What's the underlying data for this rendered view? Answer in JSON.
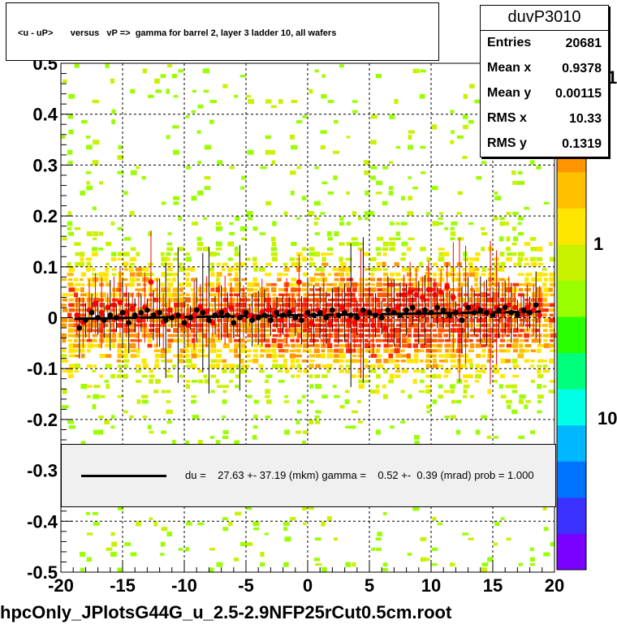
{
  "title": "<u - uP>       versus   vP =>  gamma for barrel 2, layer 3 ladder 10, all wafers",
  "stats": {
    "name": "duvP3010",
    "rows": [
      {
        "key": "Entries",
        "value": "20681"
      },
      {
        "key": "Mean x",
        "value": "0.9378"
      },
      {
        "key": "Mean y",
        "value": "0.00115"
      },
      {
        "key": "RMS x",
        "value": "10.33"
      },
      {
        "key": "RMS y",
        "value": "0.1319"
      }
    ]
  },
  "legend": {
    "text": "du =    27.63 +- 37.19 (mkm) gamma =    0.52 +-  0.39 (mrad) prob = 1.000"
  },
  "footer": "hpcOnly_JPlotsG44G_u_2.5-2.9NFP25rCut0.5cm.root",
  "colors": {
    "palette": [
      "#7a00ff",
      "#3b32ff",
      "#0073ff",
      "#00b8ff",
      "#00ffe6",
      "#00ff7a",
      "#2aff00",
      "#99ff00",
      "#c8f200",
      "#ffe600",
      "#ffc000",
      "#ff9500",
      "#ff5a00",
      "#ff2a00"
    ],
    "red_points": "#ff0000",
    "black_points": "#000000"
  },
  "chart_data": {
    "type": "heatmap",
    "xlim": [
      -20,
      20
    ],
    "ylim": [
      -0.5,
      0.5
    ],
    "x_ticks": [
      "-20",
      "-15",
      "-10",
      "-5",
      "0",
      "5",
      "10",
      "15",
      "20"
    ],
    "y_ticks": [
      "-0.5",
      "-0.4",
      "-0.3",
      "-0.2",
      "-0.1",
      "0",
      "0.1",
      "0.2",
      "0.3",
      "0.4",
      "0.5"
    ],
    "grid": true,
    "z_scale": "log",
    "z_tick_labels": [
      "10",
      "1",
      "10"
    ],
    "fit_line": {
      "x": [
        -18.9,
        18.9
      ],
      "y": [
        -0.002,
        0.012
      ]
    },
    "red_series": {
      "x": [
        -18.7,
        -18.2,
        -17.7,
        -17.2,
        -16.7,
        -16.2,
        -15.7,
        -15.2,
        -14.7,
        -14.2,
        -13.7,
        -13.2,
        -12.7,
        -12.2,
        -11.7,
        -11.2,
        -10.7,
        -10.2,
        -9.7,
        -9.2,
        -8.7,
        -8.2,
        -7.7,
        -7.2,
        -6.7,
        -6.2,
        -5.7,
        -5.2,
        -4.7,
        -4.2,
        -3.7,
        -3.2,
        -2.7,
        -2.2,
        -1.7,
        -1.2,
        -0.7,
        -0.2,
        0.3,
        0.8,
        1.3,
        1.8,
        2.3,
        2.8,
        3.3,
        3.8,
        4.3,
        4.8,
        5.3,
        5.8,
        6.3,
        6.8,
        7.3,
        7.8,
        8.3,
        8.8,
        9.3,
        9.8,
        10.3,
        10.8,
        11.3,
        11.8,
        12.3,
        12.8,
        13.3,
        13.8,
        14.3,
        14.8,
        15.3,
        15.8,
        16.3,
        16.8,
        17.3,
        17.8,
        18.3,
        18.8
      ],
      "y": [
        0.005,
        -0.01,
        0.015,
        0.028,
        0.01,
        0.02,
        0.025,
        0.03,
        0.012,
        0.018,
        -0.005,
        0.02,
        0.07,
        0.01,
        -0.008,
        0.015,
        0.005,
        0.002,
        -0.015,
        0.005,
        0.02,
        0.012,
        -0.01,
        0.01,
        0.015,
        0.02,
        0.005,
        0.012,
        0.005,
        0.0,
        0.01,
        0.015,
        0.008,
        -0.005,
        0.012,
        0.015,
        0.07,
        0.005,
        -0.01,
        0.015,
        0.01,
        -0.012,
        0.005,
        0.02,
        -0.005,
        -0.01,
        0.008,
        0.01,
        -0.015,
        0.012,
        -0.02,
        0.015,
        0.02,
        0.045,
        0.05,
        0.045,
        0.04,
        0.055,
        0.045,
        0.05,
        0.06,
        0.04,
        0.015,
        0.025,
        0.02,
        0.018,
        0.015,
        0.01,
        0.02,
        0.015,
        0.025,
        0.02,
        0.015,
        0.02,
        0.015,
        0.005
      ]
    },
    "black_series": {
      "x": [
        -18.5,
        -18.0,
        -17.5,
        -17.0,
        -16.5,
        -16.0,
        -15.5,
        -15.0,
        -14.5,
        -14.0,
        -13.5,
        -13.0,
        -12.5,
        -12.0,
        -11.5,
        -11.0,
        -10.5,
        -10.0,
        -9.5,
        -9.0,
        -8.5,
        -8.0,
        -7.5,
        -7.0,
        -6.5,
        -6.0,
        -5.5,
        -5.0,
        -4.5,
        -4.0,
        -3.5,
        -3.0,
        -2.5,
        -2.0,
        -1.5,
        -1.0,
        -0.5,
        0.0,
        0.5,
        1.0,
        1.5,
        2.0,
        2.5,
        3.0,
        3.5,
        4.0,
        4.5,
        5.0,
        5.5,
        6.0,
        6.5,
        7.0,
        7.5,
        8.0,
        8.5,
        9.0,
        9.5,
        10.0,
        10.5,
        11.0,
        11.5,
        12.0,
        12.5,
        13.0,
        13.5,
        14.0,
        14.5,
        15.0,
        15.5,
        16.0,
        16.5,
        17.0,
        17.5,
        18.0,
        18.5
      ],
      "y": [
        -0.02,
        -0.005,
        0.01,
        0.0,
        -0.005,
        0.005,
        0.0,
        0.01,
        -0.01,
        0.005,
        0.01,
        0.015,
        0.005,
        0.01,
        -0.005,
        0.0,
        0.005,
        -0.01,
        0.0,
        0.015,
        0.01,
        -0.005,
        0.005,
        0.01,
        0.005,
        -0.01,
        0.0,
        0.01,
        -0.005,
        0.0,
        0.005,
        -0.005,
        0.01,
        0.005,
        0.01,
        0.0,
        -0.005,
        0.01,
        0.005,
        0.01,
        0.0,
        0.015,
        0.005,
        0.01,
        0.005,
        0.0,
        0.015,
        0.01,
        0.005,
        0.0,
        0.015,
        0.01,
        0.005,
        0.015,
        0.02,
        0.01,
        0.015,
        0.01,
        0.02,
        0.015,
        0.005,
        0.01,
        -0.005,
        0.02,
        0.01,
        0.015,
        0.01,
        0.005,
        0.015,
        0.02,
        0.01,
        0.005,
        0.015,
        0.01,
        0.025
      ]
    }
  }
}
